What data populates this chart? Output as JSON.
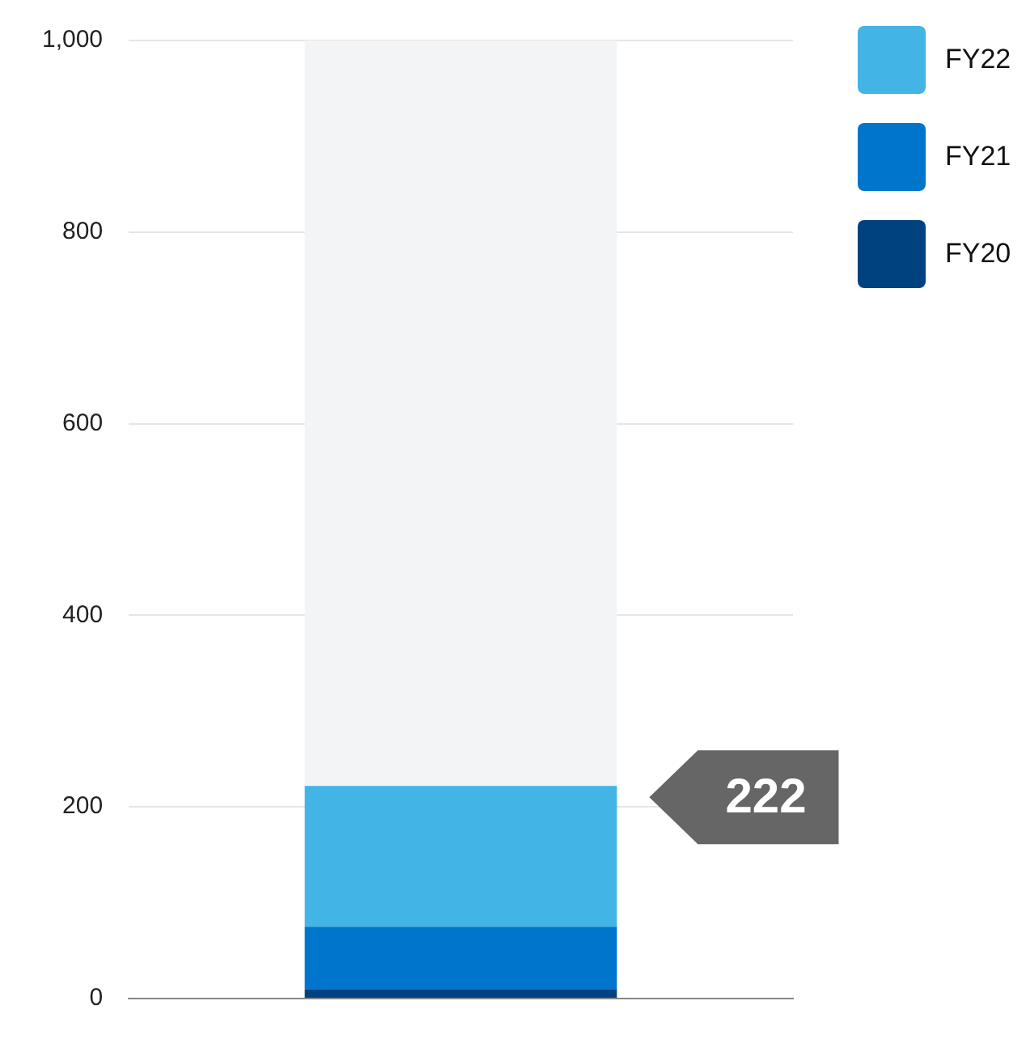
{
  "chart_data": {
    "type": "bar",
    "stacked": true,
    "categories": [
      null
    ],
    "series": [
      {
        "name": "FY20",
        "color": "#004280",
        "values": [
          10
        ]
      },
      {
        "name": "FY21",
        "color": "#0075cc",
        "values": [
          65
        ]
      },
      {
        "name": "FY22",
        "color": "#42b4e6",
        "values": [
          147
        ]
      },
      {
        "color": "#f3f4f6",
        "values": [
          778
        ]
      }
    ],
    "ylim": [
      0,
      1000
    ],
    "yticks": [
      0,
      200,
      400,
      600,
      800,
      {
        "value": 1000,
        "label": "1,000"
      }
    ],
    "grid": "y",
    "legend": "top right",
    "tick_labels": "y",
    "annotations": [
      "222"
    ]
  }
}
